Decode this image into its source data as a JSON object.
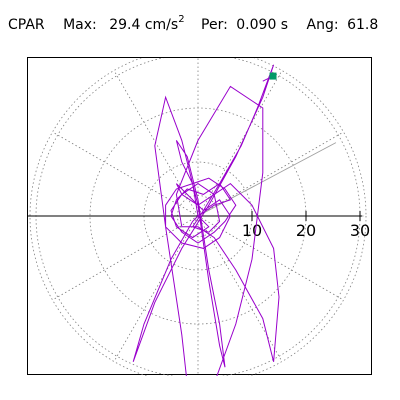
{
  "header": {
    "label": "CPAR",
    "max_label": "Max:",
    "max_value": "29.4 cm/s",
    "max_exp": "2",
    "per_label": "Per:",
    "per_value": "0.090 s",
    "ang_label": "Ang:",
    "ang_value": "61.8"
  },
  "colors": {
    "trace": "#9900cc",
    "marker": "#009966",
    "grid": "#808080",
    "axis": "#000000"
  },
  "chart_data": {
    "type": "polar-orbit",
    "radial_ticks": [
      10,
      20,
      30
    ],
    "radial_max": 30,
    "angle_line_deg": 28,
    "max_point": {
      "magnitude": 29.4,
      "angle_deg": 61.8
    },
    "orbit_xy": [
      [
        0,
        0
      ],
      [
        3,
        2
      ],
      [
        6,
        3
      ],
      [
        4,
        6
      ],
      [
        1,
        4
      ],
      [
        -2,
        5
      ],
      [
        -4,
        3
      ],
      [
        -5,
        0
      ],
      [
        -3,
        -3
      ],
      [
        0,
        -5
      ],
      [
        3,
        -3
      ],
      [
        5,
        -1
      ],
      [
        7,
        2
      ],
      [
        5,
        5
      ],
      [
        2,
        7
      ],
      [
        -1,
        6
      ],
      [
        -4,
        5
      ],
      [
        -6,
        2
      ],
      [
        -6,
        -2
      ],
      [
        -3,
        -5
      ],
      [
        1,
        -6
      ],
      [
        4,
        -4
      ],
      [
        6,
        0
      ],
      [
        4,
        3
      ],
      [
        1,
        1
      ],
      [
        -1,
        -2
      ],
      [
        2,
        -3
      ],
      [
        4,
        -1
      ],
      [
        3,
        4
      ],
      [
        0,
        6
      ],
      [
        -3,
        4
      ],
      [
        -5,
        1
      ],
      [
        -4,
        -2
      ],
      [
        -1,
        -4
      ],
      [
        2,
        -2
      ],
      [
        0,
        0
      ],
      [
        -1,
        6
      ],
      [
        -3,
        10
      ],
      [
        -4,
        14
      ],
      [
        -2,
        11
      ],
      [
        0,
        3
      ],
      [
        2,
        -10
      ],
      [
        4,
        -20
      ],
      [
        5,
        -28
      ],
      [
        4,
        -24
      ],
      [
        2,
        -12
      ],
      [
        0,
        2
      ],
      [
        -3,
        14
      ],
      [
        -6,
        22
      ],
      [
        -8,
        13
      ],
      [
        -6,
        -2
      ],
      [
        -3,
        -22
      ],
      [
        -2,
        -31
      ],
      [
        3,
        -31
      ],
      [
        7,
        -20
      ],
      [
        10,
        -8
      ],
      [
        12,
        8
      ],
      [
        12,
        20
      ],
      [
        6,
        24
      ],
      [
        0,
        14
      ],
      [
        -4,
        4
      ],
      [
        -3,
        -2
      ],
      [
        0,
        -2
      ],
      [
        3,
        -4
      ],
      [
        7,
        -10
      ],
      [
        12,
        -19
      ],
      [
        14,
        -27
      ],
      [
        15,
        -15
      ],
      [
        14,
        -6
      ],
      [
        10,
        2
      ],
      [
        6,
        6
      ],
      [
        3,
        4
      ],
      [
        0,
        2
      ],
      [
        -3,
        4
      ],
      [
        -4,
        6
      ],
      [
        -2,
        4
      ],
      [
        1,
        1
      ],
      [
        4,
        6
      ],
      [
        8,
        13
      ],
      [
        11,
        20
      ],
      [
        14,
        28
      ],
      [
        12,
        22
      ],
      [
        7,
        11
      ],
      [
        2,
        2
      ],
      [
        -3,
        -6
      ],
      [
        -8,
        -16
      ],
      [
        -12,
        -27
      ],
      [
        -10,
        -20
      ],
      [
        -5,
        -8
      ],
      [
        -1,
        -1
      ],
      [
        0,
        0
      ]
    ]
  }
}
